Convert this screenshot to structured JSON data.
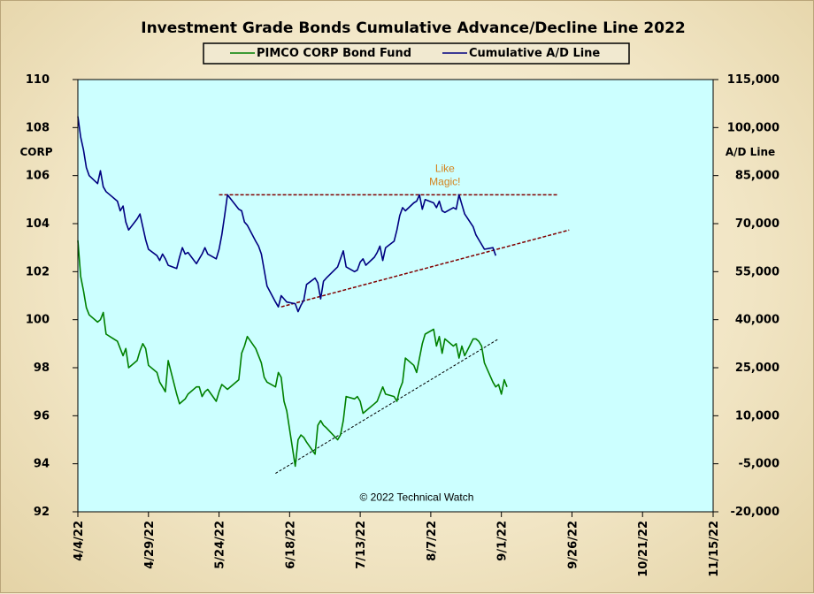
{
  "chart_data": {
    "type": "line",
    "title": "Investment Grade Bonds Cumulative Advance/Decline Line 2022",
    "legend_position": "top",
    "grid": false,
    "plot_background": "#ccffff",
    "x_axis": {
      "type": "date",
      "range": [
        "2022-04-04",
        "2022-11-15"
      ],
      "tick_labels": [
        "4/4/22",
        "4/29/22",
        "5/24/22",
        "6/18/22",
        "7/13/22",
        "8/7/22",
        "9/1/22",
        "9/26/22",
        "10/21/22",
        "11/15/22"
      ]
    },
    "y_left": {
      "label": "CORP",
      "range": [
        92,
        110
      ],
      "ticks": [
        92,
        94,
        96,
        98,
        100,
        102,
        104,
        106,
        108,
        110
      ],
      "tick_labels": [
        "92",
        "94",
        "96",
        "98",
        "100",
        "102",
        "104",
        "106",
        "108",
        "110"
      ]
    },
    "y_right": {
      "label": "A/D Line",
      "range": [
        -20000,
        115000
      ],
      "ticks": [
        -20000,
        -5000,
        10000,
        25000,
        40000,
        55000,
        70000,
        85000,
        100000,
        115000
      ],
      "tick_labels": [
        "-20,000",
        "-5,000",
        "10,000",
        "25,000",
        "40,000",
        "55,000",
        "70,000",
        "85,000",
        "100,000",
        "115,000"
      ]
    },
    "series": [
      {
        "name": "PIMCO CORP Bond Fund",
        "axis": "left",
        "color": "#008000",
        "points": [
          [
            "2022-04-04",
            103.3
          ],
          [
            "2022-04-05",
            101.8
          ],
          [
            "2022-04-06",
            101.2
          ],
          [
            "2022-04-07",
            100.5
          ],
          [
            "2022-04-08",
            100.2
          ],
          [
            "2022-04-11",
            99.9
          ],
          [
            "2022-04-12",
            100.0
          ],
          [
            "2022-04-13",
            100.3
          ],
          [
            "2022-04-14",
            99.4
          ],
          [
            "2022-04-18",
            99.1
          ],
          [
            "2022-04-19",
            98.8
          ],
          [
            "2022-04-20",
            98.5
          ],
          [
            "2022-04-21",
            98.8
          ],
          [
            "2022-04-22",
            98.0
          ],
          [
            "2022-04-25",
            98.3
          ],
          [
            "2022-04-26",
            98.7
          ],
          [
            "2022-04-27",
            99.0
          ],
          [
            "2022-04-28",
            98.8
          ],
          [
            "2022-04-29",
            98.1
          ],
          [
            "2022-05-02",
            97.8
          ],
          [
            "2022-05-03",
            97.4
          ],
          [
            "2022-05-04",
            97.2
          ],
          [
            "2022-05-05",
            97.0
          ],
          [
            "2022-05-06",
            98.3
          ],
          [
            "2022-05-09",
            96.9
          ],
          [
            "2022-05-10",
            96.5
          ],
          [
            "2022-05-11",
            96.6
          ],
          [
            "2022-05-12",
            96.7
          ],
          [
            "2022-05-13",
            96.9
          ],
          [
            "2022-05-16",
            97.2
          ],
          [
            "2022-05-17",
            97.2
          ],
          [
            "2022-05-18",
            96.8
          ],
          [
            "2022-05-19",
            97.0
          ],
          [
            "2022-05-20",
            97.1
          ],
          [
            "2022-05-23",
            96.6
          ],
          [
            "2022-05-24",
            97.0
          ],
          [
            "2022-05-25",
            97.3
          ],
          [
            "2022-05-26",
            97.2
          ],
          [
            "2022-05-27",
            97.1
          ],
          [
            "2022-05-31",
            97.5
          ],
          [
            "2022-06-01",
            98.6
          ],
          [
            "2022-06-02",
            98.9
          ],
          [
            "2022-06-03",
            99.3
          ],
          [
            "2022-06-06",
            98.8
          ],
          [
            "2022-06-07",
            98.5
          ],
          [
            "2022-06-08",
            98.2
          ],
          [
            "2022-06-09",
            97.6
          ],
          [
            "2022-06-10",
            97.4
          ],
          [
            "2022-06-13",
            97.2
          ],
          [
            "2022-06-14",
            97.8
          ],
          [
            "2022-06-15",
            97.6
          ],
          [
            "2022-06-16",
            96.6
          ],
          [
            "2022-06-17",
            96.2
          ],
          [
            "2022-06-20",
            93.9
          ],
          [
            "2022-06-21",
            95.0
          ],
          [
            "2022-06-22",
            95.2
          ],
          [
            "2022-06-23",
            95.1
          ],
          [
            "2022-06-24",
            94.9
          ],
          [
            "2022-06-27",
            94.4
          ],
          [
            "2022-06-28",
            95.6
          ],
          [
            "2022-06-29",
            95.8
          ],
          [
            "2022-06-30",
            95.6
          ],
          [
            "2022-07-01",
            95.5
          ],
          [
            "2022-07-05",
            95.0
          ],
          [
            "2022-07-06",
            95.2
          ],
          [
            "2022-07-07",
            95.8
          ],
          [
            "2022-07-08",
            96.8
          ],
          [
            "2022-07-11",
            96.7
          ],
          [
            "2022-07-12",
            96.8
          ],
          [
            "2022-07-13",
            96.6
          ],
          [
            "2022-07-14",
            96.1
          ],
          [
            "2022-07-15",
            96.2
          ],
          [
            "2022-07-18",
            96.5
          ],
          [
            "2022-07-19",
            96.6
          ],
          [
            "2022-07-20",
            96.9
          ],
          [
            "2022-07-21",
            97.2
          ],
          [
            "2022-07-22",
            96.9
          ],
          [
            "2022-07-25",
            96.8
          ],
          [
            "2022-07-26",
            96.6
          ],
          [
            "2022-07-27",
            97.1
          ],
          [
            "2022-07-28",
            97.4
          ],
          [
            "2022-07-29",
            98.4
          ],
          [
            "2022-08-01",
            98.1
          ],
          [
            "2022-08-02",
            97.8
          ],
          [
            "2022-08-03",
            98.4
          ],
          [
            "2022-08-04",
            99.0
          ],
          [
            "2022-08-05",
            99.4
          ],
          [
            "2022-08-08",
            99.6
          ],
          [
            "2022-08-09",
            98.9
          ],
          [
            "2022-08-10",
            99.3
          ],
          [
            "2022-08-11",
            98.6
          ],
          [
            "2022-08-12",
            99.2
          ],
          [
            "2022-08-15",
            98.9
          ],
          [
            "2022-08-16",
            99.0
          ],
          [
            "2022-08-17",
            98.4
          ],
          [
            "2022-08-18",
            98.9
          ],
          [
            "2022-08-19",
            98.5
          ],
          [
            "2022-08-22",
            99.2
          ],
          [
            "2022-08-23",
            99.2
          ],
          [
            "2022-08-24",
            99.1
          ],
          [
            "2022-08-25",
            98.9
          ],
          [
            "2022-08-26",
            98.2
          ],
          [
            "2022-08-29",
            97.4
          ],
          [
            "2022-08-30",
            97.2
          ],
          [
            "2022-08-31",
            97.3
          ],
          [
            "2022-09-01",
            96.9
          ],
          [
            "2022-09-02",
            97.5
          ],
          [
            "2022-09-03",
            97.2
          ]
        ]
      },
      {
        "name": "Cumulative A/D Line",
        "axis": "right",
        "color": "#000080",
        "points": [
          [
            "2022-04-04",
            103500
          ],
          [
            "2022-04-05",
            97000
          ],
          [
            "2022-04-06",
            93000
          ],
          [
            "2022-04-07",
            87500
          ],
          [
            "2022-04-08",
            85000
          ],
          [
            "2022-04-11",
            82500
          ],
          [
            "2022-04-12",
            86500
          ],
          [
            "2022-04-13",
            81500
          ],
          [
            "2022-04-14",
            80000
          ],
          [
            "2022-04-18",
            77000
          ],
          [
            "2022-04-19",
            74000
          ],
          [
            "2022-04-20",
            75500
          ],
          [
            "2022-04-21",
            70500
          ],
          [
            "2022-04-22",
            68000
          ],
          [
            "2022-04-25",
            71500
          ],
          [
            "2022-04-26",
            73000
          ],
          [
            "2022-04-27",
            69000
          ],
          [
            "2022-04-28",
            65000
          ],
          [
            "2022-04-29",
            62000
          ],
          [
            "2022-05-02",
            60000
          ],
          [
            "2022-05-03",
            58500
          ],
          [
            "2022-05-04",
            60500
          ],
          [
            "2022-05-05",
            59000
          ],
          [
            "2022-05-06",
            57000
          ],
          [
            "2022-05-09",
            56000
          ],
          [
            "2022-05-10",
            59500
          ],
          [
            "2022-05-11",
            62500
          ],
          [
            "2022-05-12",
            60500
          ],
          [
            "2022-05-13",
            61000
          ],
          [
            "2022-05-16",
            57500
          ],
          [
            "2022-05-17",
            59000
          ],
          [
            "2022-05-18",
            60500
          ],
          [
            "2022-05-19",
            62500
          ],
          [
            "2022-05-20",
            60500
          ],
          [
            "2022-05-23",
            59000
          ],
          [
            "2022-05-24",
            62000
          ],
          [
            "2022-05-25",
            66500
          ],
          [
            "2022-05-26",
            72500
          ],
          [
            "2022-05-27",
            79000
          ],
          [
            "2022-05-31",
            74500
          ],
          [
            "2022-06-01",
            74000
          ],
          [
            "2022-06-02",
            70500
          ],
          [
            "2022-06-03",
            69500
          ],
          [
            "2022-06-06",
            64500
          ],
          [
            "2022-06-07",
            63000
          ],
          [
            "2022-06-08",
            60500
          ],
          [
            "2022-06-09",
            55500
          ],
          [
            "2022-06-10",
            50500
          ],
          [
            "2022-06-13",
            45500
          ],
          [
            "2022-06-14",
            44000
          ],
          [
            "2022-06-15",
            47500
          ],
          [
            "2022-06-16",
            46500
          ],
          [
            "2022-06-17",
            45500
          ],
          [
            "2022-06-20",
            45000
          ],
          [
            "2022-06-21",
            42500
          ],
          [
            "2022-06-22",
            44500
          ],
          [
            "2022-06-23",
            46000
          ],
          [
            "2022-06-24",
            51000
          ],
          [
            "2022-06-27",
            53000
          ],
          [
            "2022-06-28",
            51500
          ],
          [
            "2022-06-29",
            46500
          ],
          [
            "2022-06-30",
            52000
          ],
          [
            "2022-07-01",
            53000
          ],
          [
            "2022-07-05",
            56500
          ],
          [
            "2022-07-06",
            59000
          ],
          [
            "2022-07-07",
            61500
          ],
          [
            "2022-07-08",
            56500
          ],
          [
            "2022-07-11",
            55000
          ],
          [
            "2022-07-12",
            55500
          ],
          [
            "2022-07-13",
            58000
          ],
          [
            "2022-07-14",
            59000
          ],
          [
            "2022-07-15",
            57000
          ],
          [
            "2022-07-18",
            59500
          ],
          [
            "2022-07-19",
            61000
          ],
          [
            "2022-07-20",
            63000
          ],
          [
            "2022-07-21",
            58500
          ],
          [
            "2022-07-22",
            62500
          ],
          [
            "2022-07-25",
            64500
          ],
          [
            "2022-07-26",
            68000
          ],
          [
            "2022-07-27",
            72500
          ],
          [
            "2022-07-28",
            75000
          ],
          [
            "2022-07-29",
            74000
          ],
          [
            "2022-08-01",
            76500
          ],
          [
            "2022-08-02",
            77000
          ],
          [
            "2022-08-03",
            79000
          ],
          [
            "2022-08-04",
            74500
          ],
          [
            "2022-08-05",
            77500
          ],
          [
            "2022-08-08",
            76500
          ],
          [
            "2022-08-09",
            75000
          ],
          [
            "2022-08-10",
            77000
          ],
          [
            "2022-08-11",
            74000
          ],
          [
            "2022-08-12",
            73500
          ],
          [
            "2022-08-15",
            75000
          ],
          [
            "2022-08-16",
            74500
          ],
          [
            "2022-08-17",
            79000
          ],
          [
            "2022-08-18",
            76000
          ],
          [
            "2022-08-19",
            73000
          ],
          [
            "2022-08-22",
            69000
          ],
          [
            "2022-08-23",
            66500
          ],
          [
            "2022-08-24",
            65000
          ],
          [
            "2022-08-25",
            63500
          ],
          [
            "2022-08-26",
            62000
          ],
          [
            "2022-08-29",
            62500
          ],
          [
            "2022-08-30",
            60000
          ]
        ]
      }
    ],
    "trendlines": [
      {
        "axis": "right",
        "color": "#800000",
        "style": "dashed",
        "from": [
          "2022-05-24",
          79000
        ],
        "to": [
          "2022-09-21",
          79000
        ]
      },
      {
        "axis": "right",
        "color": "#800000",
        "style": "dashed",
        "from": [
          "2022-06-15",
          44000
        ],
        "to": [
          "2022-09-25",
          68000
        ]
      },
      {
        "axis": "left",
        "color": "#000000",
        "style": "dashed",
        "from": [
          "2022-06-13",
          93.6
        ],
        "to": [
          "2022-08-31",
          99.2
        ]
      }
    ],
    "annotations": [
      {
        "text": "Like Magic!",
        "x": "2022-08-12",
        "y": 84000,
        "axis": "right",
        "color": "#d4821d"
      },
      {
        "text": "© 2022 Technical Watch",
        "x": "2022-08-02",
        "y": -16500,
        "axis": "right",
        "color": "#000000"
      }
    ]
  }
}
